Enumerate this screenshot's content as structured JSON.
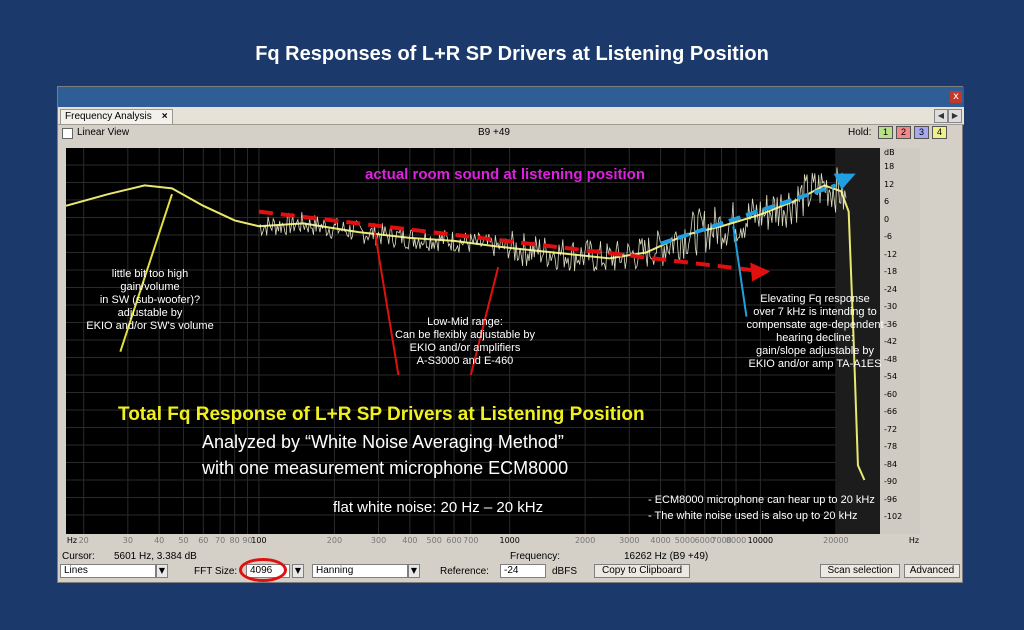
{
  "slide": {
    "title": "Fq Responses of L+R SP Drivers at Listening Position"
  },
  "window": {
    "tab_label": "Frequency Analysis",
    "tab_close": "×",
    "close_glyph": "x",
    "nav_prev": "◀",
    "nav_next": "▶",
    "linear_view_label": "Linear View",
    "top_freq_readout": "B9 +49",
    "hold_label": "Hold:",
    "hold_buttons": [
      {
        "label": "1",
        "color": "#b8e08a"
      },
      {
        "label": "2",
        "color": "#f08a8a"
      },
      {
        "label": "3",
        "color": "#a8a8f0"
      },
      {
        "label": "4",
        "color": "#f0f08a"
      }
    ]
  },
  "plot": {
    "db_unit": "dB",
    "db_ticks": [
      "18",
      "12",
      "6",
      "0",
      "-6",
      "-12",
      "-18",
      "-24",
      "-30",
      "-36",
      "-42",
      "-48",
      "-54",
      "-60",
      "-66",
      "-72",
      "-78",
      "-84",
      "-90",
      "-96",
      "-102"
    ],
    "x_unit_left": "Hz",
    "x_unit_right": "Hz",
    "x_ticks": [
      {
        "hz": 20,
        "label": "20"
      },
      {
        "hz": 30,
        "label": "30"
      },
      {
        "hz": 40,
        "label": "40"
      },
      {
        "hz": 50,
        "label": "50"
      },
      {
        "hz": 60,
        "label": "60"
      },
      {
        "hz": 70,
        "label": "70"
      },
      {
        "hz": 80,
        "label": "80"
      },
      {
        "hz": 90,
        "label": "90"
      },
      {
        "hz": 100,
        "label": "100"
      },
      {
        "hz": 200,
        "label": "200"
      },
      {
        "hz": 300,
        "label": "300"
      },
      {
        "hz": 400,
        "label": "400"
      },
      {
        "hz": 500,
        "label": "500"
      },
      {
        "hz": 600,
        "label": "600"
      },
      {
        "hz": 700,
        "label": "700"
      },
      {
        "hz": 1000,
        "label": "1000"
      },
      {
        "hz": 2000,
        "label": "2000"
      },
      {
        "hz": 3000,
        "label": "3000"
      },
      {
        "hz": 4000,
        "label": "4000"
      },
      {
        "hz": 5000,
        "label": "5000"
      },
      {
        "hz": 6000,
        "label": "6000"
      },
      {
        "hz": 7000,
        "label": "7000"
      },
      {
        "hz": 8000,
        "label": "8000"
      },
      {
        "hz": 10000,
        "label": "10000"
      },
      {
        "hz": 20000,
        "label": "20000"
      }
    ],
    "colors": {
      "curve": "#e8e870",
      "red_arrow": "#e01010",
      "blue_arrow": "#20a0e0",
      "yellow_arrow": "#e0e040"
    }
  },
  "annotations": {
    "room_sound": "actual room sound  at listening position",
    "sw_note": [
      "little bit too high",
      "gain/volume",
      "in SW (sub-woofer)?",
      "adjustable  by",
      "EKIO and/or SW's volume"
    ],
    "lowmid_note": [
      "Low-Mid range:",
      "Can be flexibly adjustable by",
      "EKIO and/or amplifiers",
      "A-S3000 and E-460"
    ],
    "elevate_note": [
      "Elevating Fq response",
      "over 7 kHz is intending to",
      "compensate age-dependent",
      "hearing decline:",
      "gain/slope adjustable by",
      "EKIO and/or amp TA-A1ES"
    ],
    "total_title": "Total Fq Response of L+R SP Drivers at Listening Position",
    "analyzed_line1": "Analyzed by “White Noise Averaging Method”",
    "analyzed_line2": "with one measurement microphone ECM8000",
    "flat_noise": "flat white noise: 20 Hz – 20 kHz",
    "mic_note1": "- ECM8000 microphone  can hear up to 20 kHz",
    "mic_note2": "- The white noise used is also up to 20 kHz"
  },
  "status": {
    "cursor_label": "Cursor:",
    "cursor_value": "5601 Hz, 3.384 dB",
    "frequency_label": "Frequency:",
    "frequency_value": "16262 Hz (B9 +49)"
  },
  "controls": {
    "view_mode": "Lines",
    "fft_size_label": "FFT Size:",
    "fft_size_value": "4096",
    "window_func": "Hanning",
    "reference_label": "Reference:",
    "reference_value": "-24",
    "reference_unit": "dBFS",
    "copy_button": "Copy to Clipboard",
    "scan_button": "Scan selection",
    "advanced_button": "Advanced"
  }
}
